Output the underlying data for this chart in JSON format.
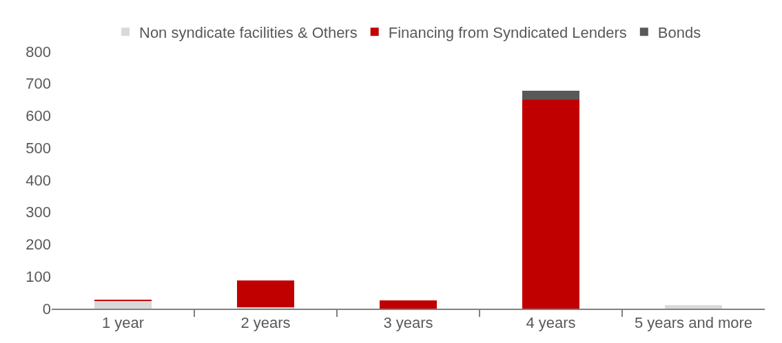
{
  "chart_data": {
    "type": "bar",
    "stacked": true,
    "categories": [
      "1 year",
      "2 years",
      "3 years",
      "4 years",
      "5 years and more"
    ],
    "series": [
      {
        "name": "Non syndicate facilities & Others",
        "color": "#d9d9d9",
        "values": [
          24,
          4,
          null,
          0,
          11
        ]
      },
      {
        "name": "Financing from Syndicated Lenders",
        "color": "#c00000",
        "values": [
          4,
          84,
          26,
          650,
          0
        ]
      },
      {
        "name": "Bonds",
        "color": "#595959",
        "values": [
          0,
          0,
          0,
          28,
          0
        ]
      }
    ],
    "ylim": [
      0,
      800
    ],
    "yticks": [
      0,
      100,
      200,
      300,
      400,
      500,
      600,
      700,
      800
    ],
    "legend": "top"
  }
}
